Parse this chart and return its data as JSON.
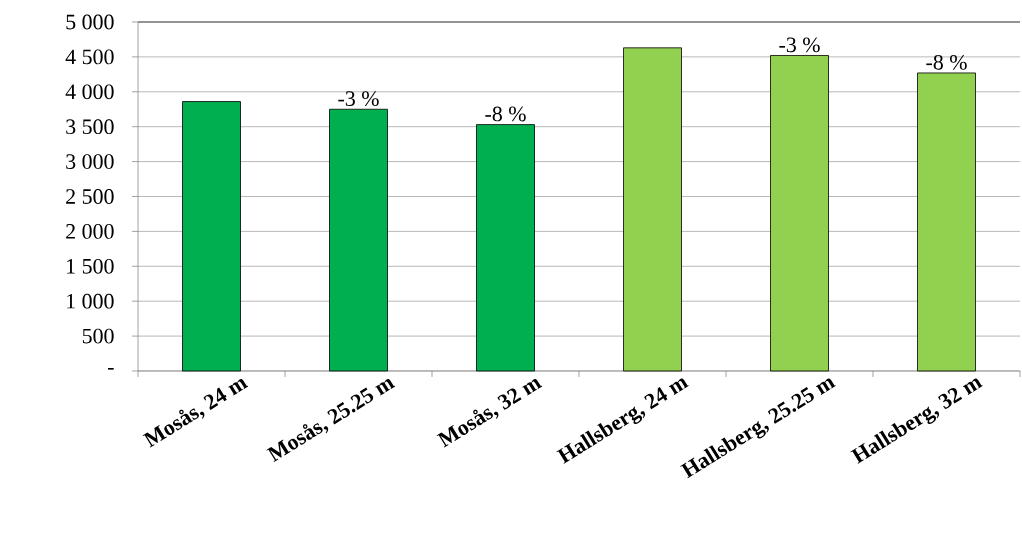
{
  "chart_data": {
    "type": "bar",
    "categories": [
      "Mosås, 24 m",
      "Mosås, 25.25 m",
      "Mosås, 32 m",
      "Hallsberg, 24 m",
      "Hallsberg, 25.25 m",
      "Hallsberg, 32 m"
    ],
    "values": [
      3860,
      3750,
      3530,
      4630,
      4520,
      4270
    ],
    "colors": [
      "#00b050",
      "#00b050",
      "#00b050",
      "#92d050",
      "#92d050",
      "#92d050"
    ],
    "annotations": [
      {
        "text": "-3 %",
        "x": "Mosås, 25.25 m",
        "y": 3750
      },
      {
        "text": "-8 %",
        "x": "Mosås, 32 m",
        "y": 3530
      },
      {
        "text": "-3 %",
        "x": "Hallsberg, 25.25 m",
        "y": 4520
      },
      {
        "text": "-8 %",
        "x": "Hallsberg, 32 m",
        "y": 4270
      }
    ],
    "ylim": [
      0,
      5000
    ],
    "yticks": [
      {
        "value": 0,
        "label": "-"
      },
      {
        "value": 500,
        "label": "500"
      },
      {
        "value": 1000,
        "label": "1 000"
      },
      {
        "value": 1500,
        "label": "1 500"
      },
      {
        "value": 2000,
        "label": "2 000"
      },
      {
        "value": 2500,
        "label": "2 500"
      },
      {
        "value": 3000,
        "label": "3 000"
      },
      {
        "value": 3500,
        "label": "3 500"
      },
      {
        "value": 4000,
        "label": "4 000"
      },
      {
        "value": 4500,
        "label": "4 500"
      },
      {
        "value": 5000,
        "label": "5 000"
      }
    ],
    "grid": "y"
  }
}
